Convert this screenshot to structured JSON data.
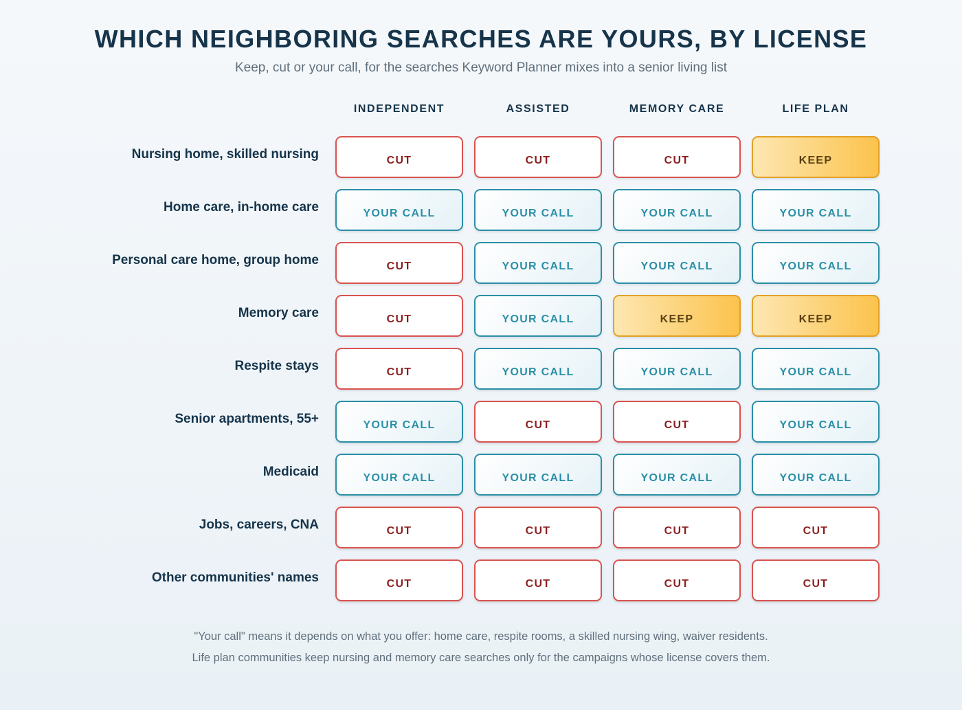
{
  "title": "WHICH NEIGHBORING SEARCHES ARE YOURS, BY LICENSE",
  "subtitle": "Keep, cut or your call, for the searches Keyword Planner mixes into a senior living list",
  "columns": [
    "INDEPENDENT",
    "ASSISTED",
    "MEMORY CARE",
    "LIFE PLAN"
  ],
  "rows": [
    {
      "label": "Nursing home, skilled nursing",
      "cells": [
        {
          "text": "CUT",
          "kind": "cut"
        },
        {
          "text": "CUT",
          "kind": "cut"
        },
        {
          "text": "CUT",
          "kind": "cut"
        },
        {
          "text": "KEEP",
          "kind": "keep"
        }
      ]
    },
    {
      "label": "Home care, in-home care",
      "cells": [
        {
          "text": "YOUR CALL",
          "kind": "call"
        },
        {
          "text": "YOUR CALL",
          "kind": "call"
        },
        {
          "text": "YOUR CALL",
          "kind": "call"
        },
        {
          "text": "YOUR CALL",
          "kind": "call"
        }
      ]
    },
    {
      "label": "Personal care home, group home",
      "cells": [
        {
          "text": "CUT",
          "kind": "cut"
        },
        {
          "text": "YOUR CALL",
          "kind": "call"
        },
        {
          "text": "YOUR CALL",
          "kind": "call"
        },
        {
          "text": "YOUR CALL",
          "kind": "call"
        }
      ]
    },
    {
      "label": "Memory care",
      "cells": [
        {
          "text": "CUT",
          "kind": "cut"
        },
        {
          "text": "YOUR CALL",
          "kind": "call"
        },
        {
          "text": "KEEP",
          "kind": "keep"
        },
        {
          "text": "KEEP",
          "kind": "keep"
        }
      ]
    },
    {
      "label": "Respite stays",
      "cells": [
        {
          "text": "CUT",
          "kind": "cut"
        },
        {
          "text": "YOUR CALL",
          "kind": "call"
        },
        {
          "text": "YOUR CALL",
          "kind": "call"
        },
        {
          "text": "YOUR CALL",
          "kind": "call"
        }
      ]
    },
    {
      "label": "Senior apartments, 55+",
      "cells": [
        {
          "text": "YOUR CALL",
          "kind": "call"
        },
        {
          "text": "CUT",
          "kind": "cut"
        },
        {
          "text": "CUT",
          "kind": "cut"
        },
        {
          "text": "YOUR CALL",
          "kind": "call"
        }
      ]
    },
    {
      "label": "Medicaid",
      "cells": [
        {
          "text": "YOUR CALL",
          "kind": "call"
        },
        {
          "text": "YOUR CALL",
          "kind": "call"
        },
        {
          "text": "YOUR CALL",
          "kind": "call"
        },
        {
          "text": "YOUR CALL",
          "kind": "call"
        }
      ]
    },
    {
      "label": "Jobs, careers, CNA",
      "cells": [
        {
          "text": "CUT",
          "kind": "cut"
        },
        {
          "text": "CUT",
          "kind": "cut"
        },
        {
          "text": "CUT",
          "kind": "cut"
        },
        {
          "text": "CUT",
          "kind": "cut"
        }
      ]
    },
    {
      "label": "Other communities' names",
      "cells": [
        {
          "text": "CUT",
          "kind": "cut"
        },
        {
          "text": "CUT",
          "kind": "cut"
        },
        {
          "text": "CUT",
          "kind": "cut"
        },
        {
          "text": "CUT",
          "kind": "cut"
        }
      ]
    }
  ],
  "footnotes": [
    "\"Your call\" means it depends on what you offer: home care, respite rooms, a skilled nursing wing, waiver residents.",
    "Life plan communities keep nursing and memory care searches only for the campaigns whose license covers them."
  ],
  "colors": {
    "cut_border": "#d9534f",
    "cut_text": "#8b1e1e",
    "call_border": "#2a8fa6",
    "keep_fill": "#fcc34d",
    "keep_border": "#e3a127",
    "heading": "#16344a"
  }
}
